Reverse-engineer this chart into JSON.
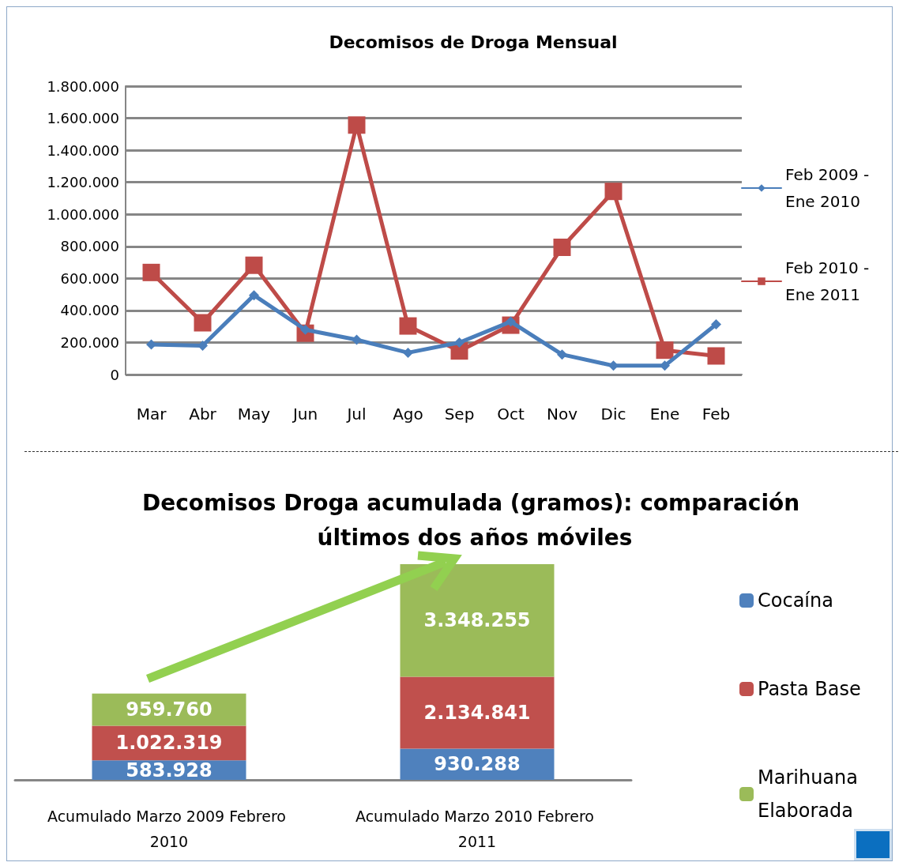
{
  "chart_data": [
    {
      "type": "line",
      "title": "Decomisos de Droga Mensual",
      "categories": [
        "Mar",
        "Abr",
        "May",
        "Jun",
        "Jul",
        "Ago",
        "Sep",
        "Oct",
        "Nov",
        "Dic",
        "Ene",
        "Feb"
      ],
      "series": [
        {
          "name": "Feb 2009 - Ene 2010",
          "color": "#4a7ebb",
          "marker": "diamond",
          "values": [
            187000,
            180000,
            495000,
            280000,
            217000,
            136000,
            200000,
            330000,
            125000,
            55000,
            55000,
            313000
          ]
        },
        {
          "name": "Feb 2010 - Ene 2011",
          "color": "#be4b48",
          "marker": "square",
          "values": [
            637000,
            323000,
            682000,
            258000,
            1557000,
            303000,
            147000,
            308000,
            794000,
            1143000,
            152000,
            116000
          ]
        }
      ],
      "ylim": [
        0,
        1800000
      ],
      "yticks": [
        {
          "value": 0,
          "label": "0"
        },
        {
          "value": 200000,
          "label": "200.000"
        },
        {
          "value": 400000,
          "label": "400.000"
        },
        {
          "value": 600000,
          "label": "600.000"
        },
        {
          "value": 800000,
          "label": "800.000"
        },
        {
          "value": 1000000,
          "label": "1.000.000"
        },
        {
          "value": 1200000,
          "label": "1.200.000"
        },
        {
          "value": 1400000,
          "label": "1.400.000"
        },
        {
          "value": 1600000,
          "label": "1.600.000"
        },
        {
          "value": 1800000,
          "label": "1.800.000"
        }
      ],
      "grid": "y",
      "legend": "right"
    },
    {
      "type": "bar",
      "title": "Decomisos Droga acumulada (gramos): comparación últimos dos años móviles",
      "stacked": true,
      "tick_labels": "x",
      "categories": [
        "Acumulado Marzo 2009 Febrero 2010",
        "Acumulado Marzo 2010 Febrero 2011"
      ],
      "series": [
        {
          "name": "Cocaína",
          "color": "#4f81bd",
          "values": [
            583928,
            930288
          ],
          "value_labels": [
            "583.928",
            "930.288"
          ]
        },
        {
          "name": "Pasta Base",
          "color": "#c0504d",
          "values": [
            1022319,
            2134841
          ],
          "value_labels": [
            "1.022.319",
            "2.134.841"
          ]
        },
        {
          "name": "Marihuana Elaborada",
          "color": "#9bbb59",
          "values": [
            959760,
            3348255
          ],
          "value_labels": [
            "959.760",
            "3.348.255"
          ]
        }
      ],
      "grid": false,
      "legend": "right"
    }
  ]
}
